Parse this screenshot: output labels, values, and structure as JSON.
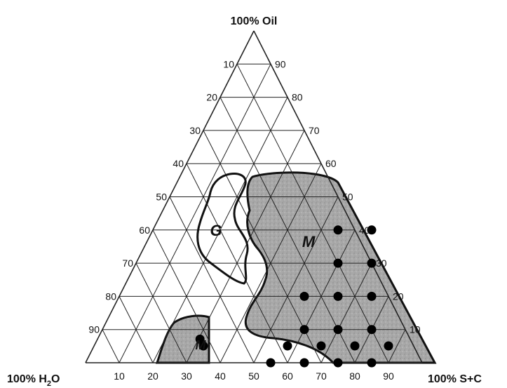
{
  "chart_data": {
    "type": "ternary",
    "vertices": {
      "top": "100% Oil",
      "left": "100% H",
      "left_sub": "2",
      "left_tail": "O",
      "right": "100% S+C"
    },
    "ticks": {
      "left_side": [
        "10",
        "20",
        "30",
        "40",
        "50",
        "60",
        "70",
        "80",
        "90"
      ],
      "right_side": [
        "90",
        "80",
        "70",
        "60",
        "50",
        "40",
        "30",
        "20",
        "10"
      ],
      "bottom": [
        "10",
        "20",
        "30",
        "40",
        "50",
        "60",
        "70",
        "80",
        "90"
      ]
    },
    "grid_step": 10,
    "regions": [
      {
        "label": "G",
        "fill": "none"
      },
      {
        "label": "M",
        "fill": "#a6a6a6"
      },
      {
        "label": "M",
        "fill": "#a6a6a6"
      }
    ],
    "points": [
      {
        "sc": 55,
        "oil": 40
      },
      {
        "sc": 65,
        "oil": 40
      },
      {
        "sc": 60,
        "oil": 30
      },
      {
        "sc": 70,
        "oil": 30
      },
      {
        "sc": 55,
        "oil": 20
      },
      {
        "sc": 65,
        "oil": 20
      },
      {
        "sc": 75,
        "oil": 20
      },
      {
        "sc": 60,
        "oil": 10
      },
      {
        "sc": 70,
        "oil": 10
      },
      {
        "sc": 80,
        "oil": 10
      },
      {
        "sc": 55,
        "oil": 0
      },
      {
        "sc": 65,
        "oil": 0
      },
      {
        "sc": 75,
        "oil": 0
      },
      {
        "sc": 85,
        "oil": 0
      },
      {
        "sc": 60,
        "oil": -10
      },
      {
        "sc": 70,
        "oil": -10
      },
      {
        "sc": 80,
        "oil": -10
      },
      {
        "sc": 90,
        "oil": -10
      },
      {
        "sc": 35,
        "oil": -10
      },
      {
        "sc": 34,
        "oil": -14
      }
    ]
  }
}
